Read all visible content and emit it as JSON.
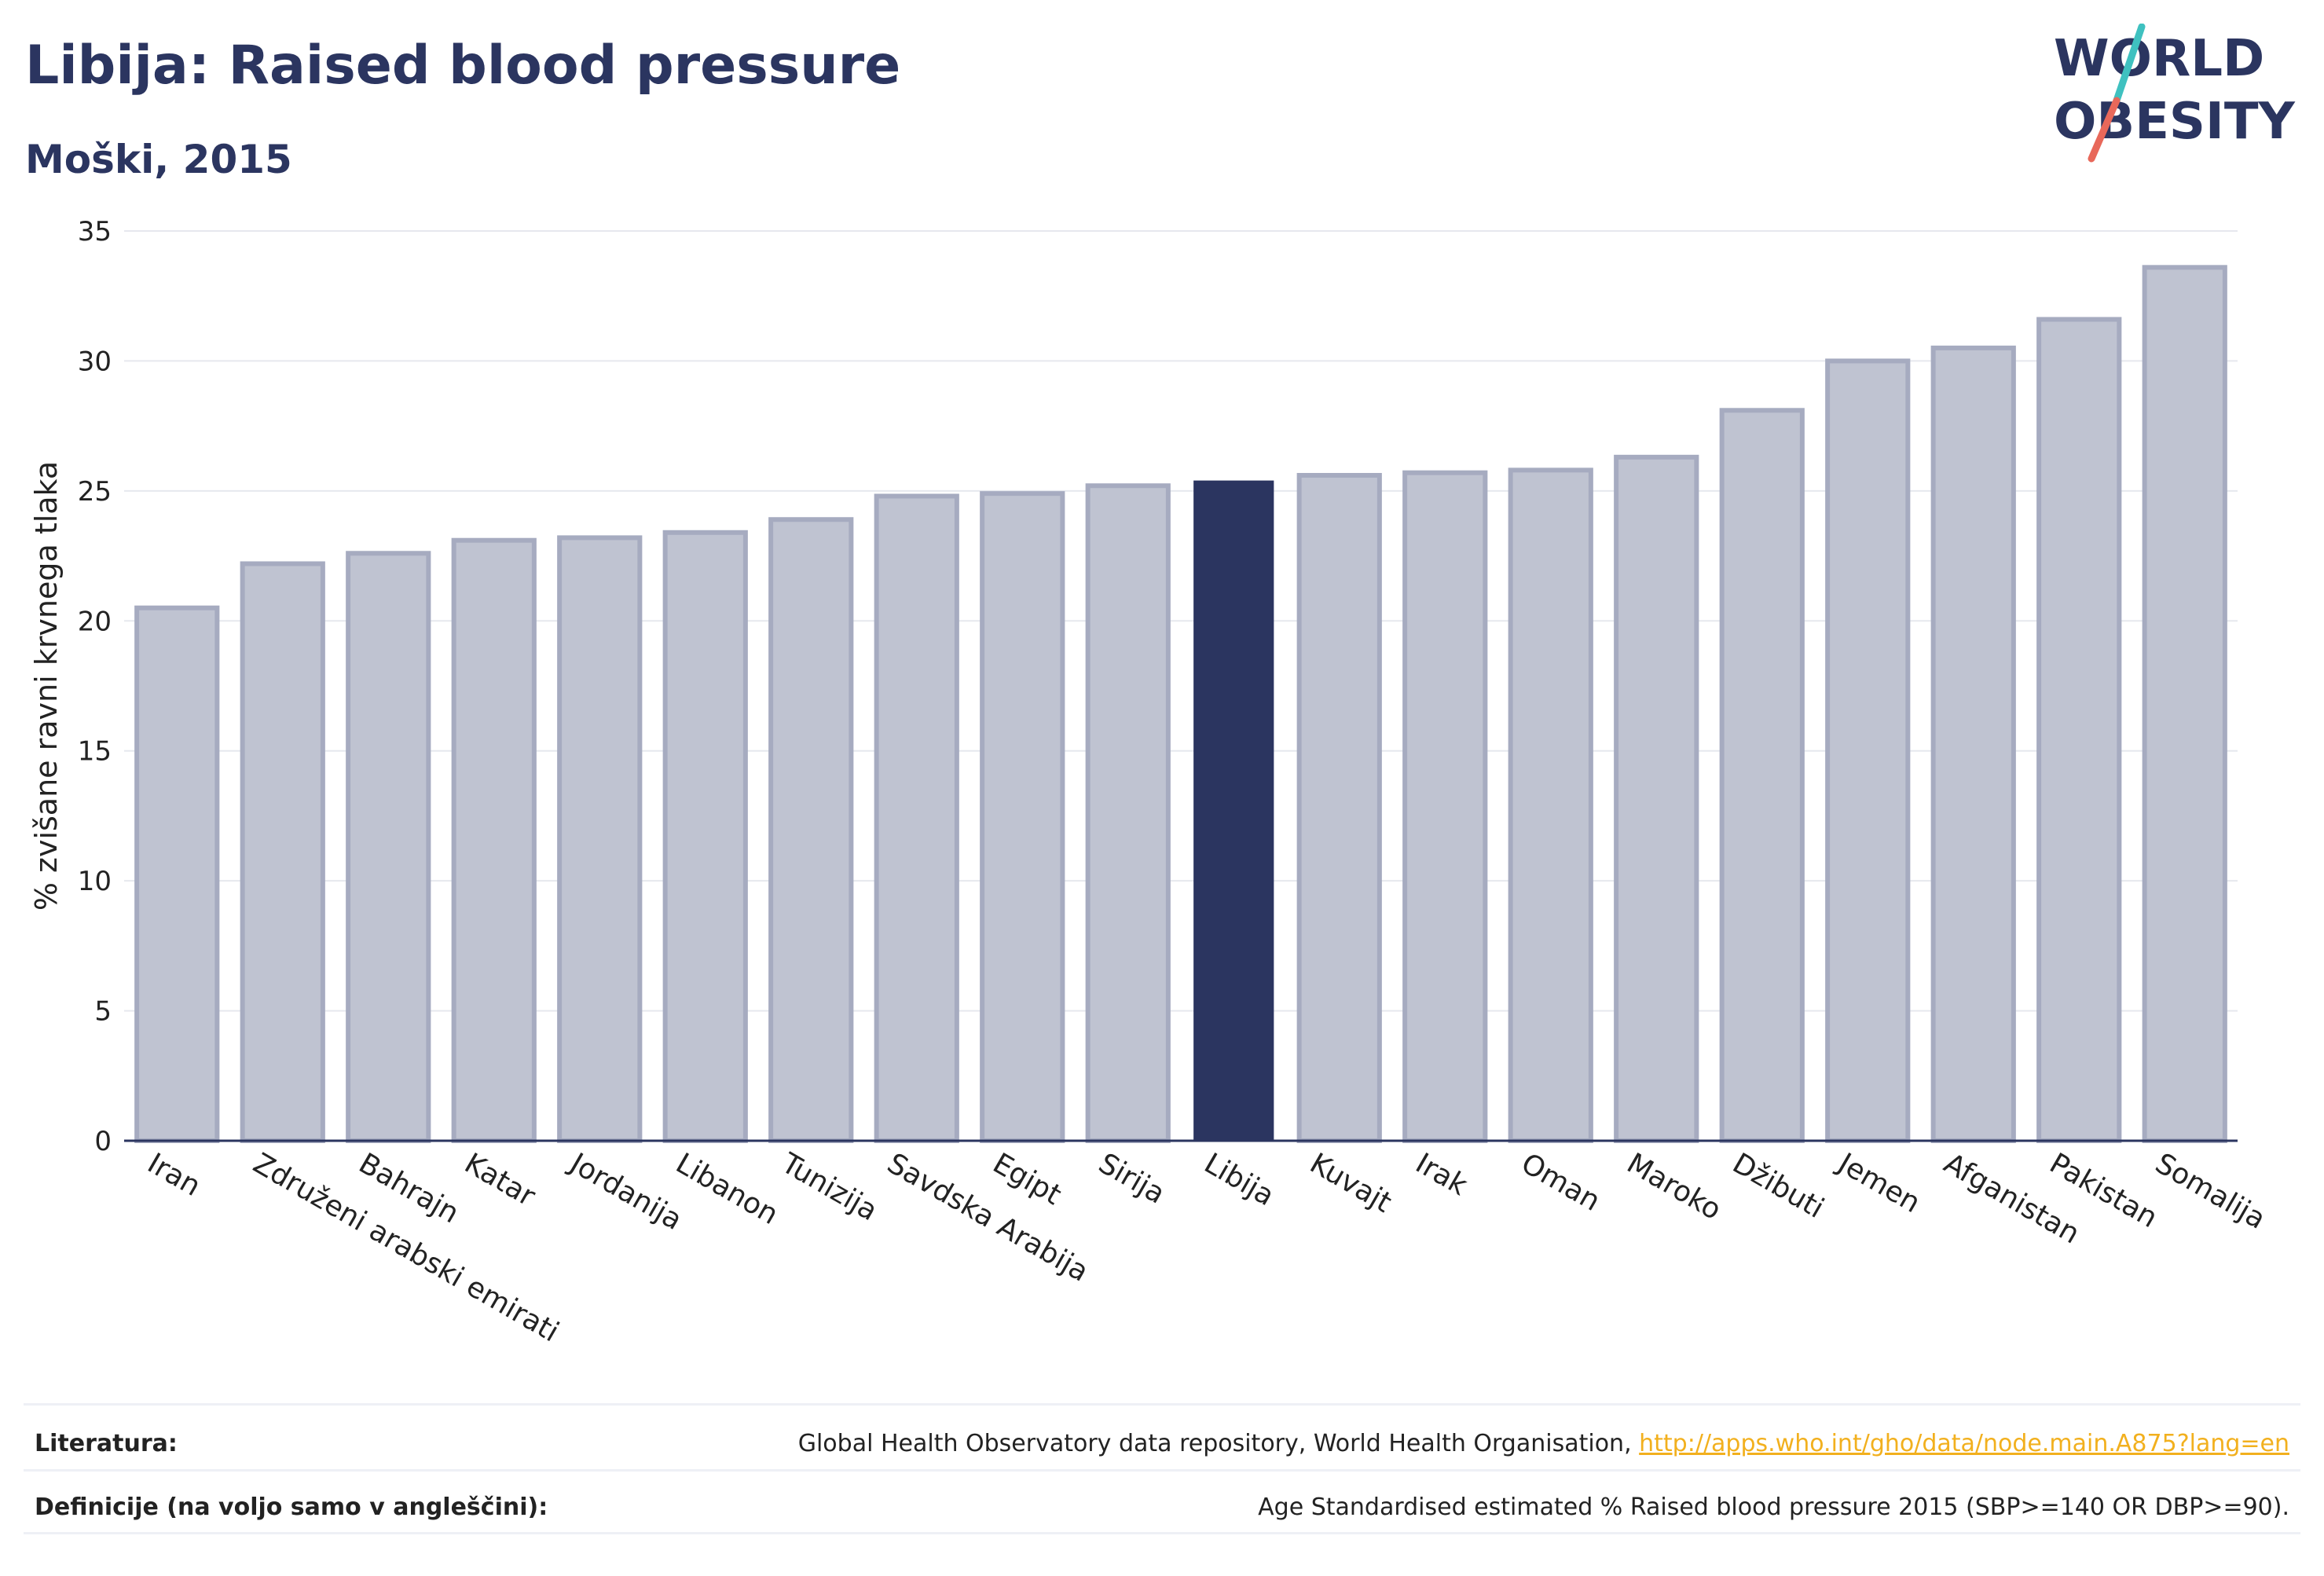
{
  "header": {
    "title": "Libija: Raised blood pressure",
    "subtitle": "Moški, 2015"
  },
  "logo": {
    "line1": "WORLD",
    "line2": "OBESITY",
    "slash_top_color": "#3fc1c0",
    "slash_bottom_color": "#e8685a"
  },
  "colors": {
    "bar": "#bfc3d1",
    "bar_border": "#a6abc0",
    "highlight": "#2b3560",
    "grid": "#e6e8ee",
    "axis": "#2b3560"
  },
  "chart_data": {
    "type": "bar",
    "title": "Libija: Raised blood pressure",
    "subtitle": "Moški, 2015",
    "xlabel": "",
    "ylabel": "% zvišane ravni krvnega tlaka",
    "ylim": [
      0,
      35
    ],
    "yticks": [
      0,
      5,
      10,
      15,
      20,
      25,
      30,
      35
    ],
    "grid": true,
    "highlight": "Libija",
    "categories": [
      "Iran",
      "Združeni arabski emirati",
      "Bahrajn",
      "Katar",
      "Jordanija",
      "Libanon",
      "Tunizija",
      "Savdska Arabija",
      "Egipt",
      "Sirija",
      "Libija",
      "Kuvajt",
      "Irak",
      "Oman",
      "Maroko",
      "Džibuti",
      "Jemen",
      "Afganistan",
      "Pakistan",
      "Somalija"
    ],
    "values": [
      20.5,
      22.2,
      22.6,
      23.1,
      23.2,
      23.4,
      23.9,
      24.8,
      24.9,
      25.2,
      25.4,
      25.6,
      25.7,
      25.8,
      26.3,
      28.1,
      30.0,
      30.5,
      31.6,
      33.6
    ]
  },
  "footer": {
    "literature_label": "Literatura:",
    "literature_text": "Global Health Observatory data repository, World Health Organisation, ",
    "literature_link": "http://apps.who.int/gho/data/node.main.A875?lang=en",
    "definitions_label": "Definicije (na voljo samo v angleščini):",
    "definitions_text": "Age Standardised estimated % Raised blood pressure 2015 (SBP>=140 OR DBP>=90)."
  }
}
